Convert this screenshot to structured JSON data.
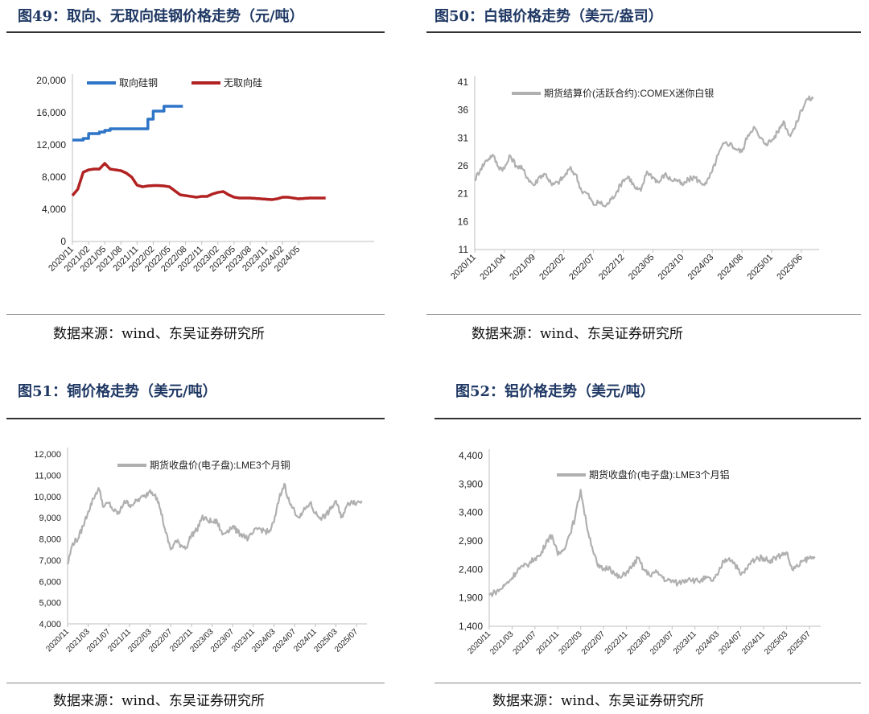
{
  "panels": [
    {
      "title": "图49：取向、无取向硅钢价格走势（元/吨）",
      "source": "数据来源：wind、东吴证券研究所"
    },
    {
      "title": "图50：白银价格走势（美元/盎司）",
      "source": "数据来源：wind、东吴证券研究所"
    },
    {
      "title": "图51：铜价格走势（美元/吨）",
      "source": "数据来源：wind、东吴证券研究所"
    },
    {
      "title": "图52：铝价格走势（美元/吨）",
      "source": "数据来源：wind、东吴证券研究所"
    }
  ],
  "chart_data": [
    {
      "type": "line",
      "title": "",
      "xlabel": "",
      "ylabel": "",
      "ylim": [
        0,
        20000
      ],
      "yticks": [
        "0",
        "4,000",
        "8,000",
        "12,000",
        "16,000",
        "20,000"
      ],
      "xrange": [
        "2020-11",
        "2025-07"
      ],
      "xticks": [
        "2020/11",
        "2021/02",
        "2021/05",
        "2021/08",
        "2021/11",
        "2022/02",
        "2022/05",
        "2022/08",
        "2022/11",
        "2023/02",
        "2023/05",
        "2023/08",
        "2023/11",
        "2024/02",
        "2024/05"
      ],
      "legend_position": "top",
      "grid": false,
      "series": [
        {
          "name": "取向硅钢",
          "color": "#2e75c8",
          "step": true,
          "x": [
            "2020-11",
            "2021-01",
            "2021-02",
            "2021-04",
            "2021-05",
            "2021-06",
            "2021-08",
            "2021-10",
            "2022-01",
            "2022-02",
            "2022-03",
            "2022-04",
            "2022-05",
            "2022-06",
            "2022-07"
          ],
          "values": [
            12600,
            12800,
            13400,
            13600,
            13800,
            14000,
            14000,
            14000,
            15200,
            16200,
            16200,
            16800,
            16800,
            16800,
            16800
          ]
        },
        {
          "name": "无取向硅",
          "color": "#b22222",
          "x": [
            "2020-11",
            "2020-12",
            "2021-01",
            "2021-02",
            "2021-03",
            "2021-04",
            "2021-05",
            "2021-06",
            "2021-07",
            "2021-08",
            "2021-09",
            "2021-10",
            "2021-11",
            "2021-12",
            "2022-01",
            "2022-02",
            "2022-03",
            "2022-04",
            "2022-05",
            "2022-06",
            "2022-07",
            "2022-08",
            "2022-09",
            "2022-10",
            "2022-11",
            "2022-12",
            "2023-01",
            "2023-02",
            "2023-03",
            "2023-04",
            "2023-05",
            "2023-06",
            "2023-07",
            "2023-08",
            "2023-09",
            "2023-10",
            "2023-11",
            "2023-12",
            "2024-01",
            "2024-02",
            "2024-03",
            "2024-04",
            "2024-05",
            "2024-06",
            "2024-07",
            "2024-08",
            "2024-09",
            "2024-10"
          ],
          "values": [
            5700,
            6500,
            8600,
            8900,
            9000,
            9000,
            9700,
            9000,
            8900,
            8800,
            8500,
            8000,
            7000,
            6800,
            6900,
            6950,
            6950,
            6900,
            6800,
            6300,
            5800,
            5700,
            5600,
            5500,
            5600,
            5600,
            5900,
            6100,
            6200,
            5800,
            5500,
            5400,
            5400,
            5400,
            5350,
            5300,
            5250,
            5200,
            5300,
            5500,
            5500,
            5400,
            5300,
            5350,
            5400,
            5400,
            5400,
            5400
          ]
        }
      ]
    },
    {
      "type": "line",
      "title": "",
      "xlabel": "",
      "ylabel": "",
      "ylim": [
        11,
        41
      ],
      "yticks": [
        "11",
        "16",
        "21",
        "26",
        "31",
        "36",
        "41"
      ],
      "xrange": [
        "2020-11",
        "2025-09"
      ],
      "xticks": [
        "2020/11",
        "2021/04",
        "2021/09",
        "2022/02",
        "2022/07",
        "2022/12",
        "2023/05",
        "2023/10",
        "2024/03",
        "2024/08",
        "2025/01",
        "2025/06"
      ],
      "legend_position": "top-right",
      "grid": false,
      "series": [
        {
          "name": "期货结算价(活跃合约):COMEX迷你白银",
          "color": "#b0b0b0",
          "x": [
            "2020-11",
            "2020-12",
            "2021-01",
            "2021-02",
            "2021-03",
            "2021-04",
            "2021-05",
            "2021-06",
            "2021-07",
            "2021-08",
            "2021-09",
            "2021-10",
            "2021-11",
            "2021-12",
            "2022-01",
            "2022-02",
            "2022-03",
            "2022-04",
            "2022-05",
            "2022-06",
            "2022-07",
            "2022-08",
            "2022-09",
            "2022-10",
            "2022-11",
            "2022-12",
            "2023-01",
            "2023-02",
            "2023-03",
            "2023-04",
            "2023-05",
            "2023-06",
            "2023-07",
            "2023-08",
            "2023-09",
            "2023-10",
            "2023-11",
            "2023-12",
            "2024-01",
            "2024-02",
            "2024-03",
            "2024-04",
            "2024-05",
            "2024-06",
            "2024-07",
            "2024-08",
            "2024-09",
            "2024-10",
            "2024-11",
            "2024-12",
            "2025-01",
            "2025-02",
            "2025-03",
            "2025-04",
            "2025-05",
            "2025-06",
            "2025-07",
            "2025-08"
          ],
          "values": [
            23.5,
            25.5,
            27,
            28,
            25.8,
            25.5,
            27.8,
            26,
            25.5,
            23.7,
            22.5,
            24.2,
            24.5,
            22.5,
            23,
            24,
            25.5,
            24.5,
            21.5,
            21,
            19,
            19.5,
            18.7,
            20,
            21.5,
            23.5,
            24,
            22,
            21.5,
            25,
            24,
            23,
            24.5,
            23.5,
            23.5,
            22.5,
            23.5,
            24,
            23,
            22.8,
            25,
            28,
            30,
            30,
            29,
            28.5,
            31.5,
            33,
            31,
            30,
            30.5,
            32,
            34,
            31.5,
            33,
            36,
            38,
            38
          ]
        }
      ]
    },
    {
      "type": "line",
      "title": "",
      "xlabel": "",
      "ylabel": "",
      "ylim": [
        4000,
        12000
      ],
      "yticks": [
        "4,000",
        "5,000",
        "6,000",
        "7,000",
        "8,000",
        "9,000",
        "10,000",
        "11,000",
        "12,000"
      ],
      "xrange": [
        "2020-11",
        "2025-09"
      ],
      "xticks": [
        "2020/11",
        "2021/03",
        "2021/07",
        "2021/11",
        "2022/03",
        "2022/07",
        "2022/11",
        "2023/03",
        "2023/07",
        "2023/11",
        "2024/03",
        "2024/07",
        "2024/11",
        "2025/03",
        "2025/07"
      ],
      "legend_position": "top",
      "grid": false,
      "series": [
        {
          "name": "期货收盘价(电子盘):LME3个月铜",
          "color": "#b0b0b0",
          "x": [
            "2020-11",
            "2020-12",
            "2021-01",
            "2021-02",
            "2021-03",
            "2021-04",
            "2021-05",
            "2021-06",
            "2021-07",
            "2021-08",
            "2021-09",
            "2021-10",
            "2021-11",
            "2021-12",
            "2022-01",
            "2022-02",
            "2022-03",
            "2022-04",
            "2022-05",
            "2022-06",
            "2022-07",
            "2022-08",
            "2022-09",
            "2022-10",
            "2022-11",
            "2022-12",
            "2023-01",
            "2023-02",
            "2023-03",
            "2023-04",
            "2023-05",
            "2023-06",
            "2023-07",
            "2023-08",
            "2023-09",
            "2023-10",
            "2023-11",
            "2023-12",
            "2024-01",
            "2024-02",
            "2024-03",
            "2024-04",
            "2024-05",
            "2024-06",
            "2024-07",
            "2024-08",
            "2024-09",
            "2024-10",
            "2024-11",
            "2024-12",
            "2025-01",
            "2025-02",
            "2025-03",
            "2025-04",
            "2025-05",
            "2025-06",
            "2025-07",
            "2025-08"
          ],
          "values": [
            6800,
            7800,
            8000,
            8600,
            9300,
            9900,
            10400,
            9500,
            9700,
            9300,
            9200,
            9800,
            9600,
            9700,
            9900,
            10000,
            10300,
            10100,
            9400,
            8300,
            7500,
            7900,
            7700,
            7600,
            8200,
            8400,
            9000,
            8900,
            8800,
            8800,
            8200,
            8400,
            8600,
            8300,
            8200,
            8000,
            8300,
            8500,
            8400,
            8300,
            8800,
            9900,
            10600,
            9700,
            9300,
            9000,
            9400,
            9700,
            9200,
            9000,
            9100,
            9400,
            9800,
            9000,
            9500,
            9800,
            9700,
            9800
          ]
        }
      ]
    },
    {
      "type": "line",
      "title": "",
      "xlabel": "",
      "ylabel": "",
      "ylim": [
        1400,
        4400
      ],
      "yticks": [
        "1,400",
        "1,900",
        "2,400",
        "2,900",
        "3,400",
        "3,900",
        "4,400"
      ],
      "xrange": [
        "2020-11",
        "2025-09"
      ],
      "xticks": [
        "2020/11",
        "2021/03",
        "2021/07",
        "2021/11",
        "2022/03",
        "2022/07",
        "2022/11",
        "2023/03",
        "2023/07",
        "2023/11",
        "2024/03",
        "2024/07",
        "2024/11",
        "2025/03",
        "2025/07"
      ],
      "legend_position": "top",
      "grid": false,
      "series": [
        {
          "name": "期货收盘价(电子盘):LME3个月铝",
          "color": "#b0b0b0",
          "x": [
            "2020-11",
            "2020-12",
            "2021-01",
            "2021-02",
            "2021-03",
            "2021-04",
            "2021-05",
            "2021-06",
            "2021-07",
            "2021-08",
            "2021-09",
            "2021-10",
            "2021-11",
            "2021-12",
            "2022-01",
            "2022-02",
            "2022-03",
            "2022-04",
            "2022-05",
            "2022-06",
            "2022-07",
            "2022-08",
            "2022-09",
            "2022-10",
            "2022-11",
            "2022-12",
            "2023-01",
            "2023-02",
            "2023-03",
            "2023-04",
            "2023-05",
            "2023-06",
            "2023-07",
            "2023-08",
            "2023-09",
            "2023-10",
            "2023-11",
            "2023-12",
            "2024-01",
            "2024-02",
            "2024-03",
            "2024-04",
            "2024-05",
            "2024-06",
            "2024-07",
            "2024-08",
            "2024-09",
            "2024-10",
            "2024-11",
            "2024-12",
            "2025-01",
            "2025-02",
            "2025-03",
            "2025-04",
            "2025-05",
            "2025-06",
            "2025-07",
            "2025-08"
          ],
          "values": [
            1950,
            2000,
            2050,
            2150,
            2250,
            2400,
            2450,
            2500,
            2600,
            2650,
            2900,
            3000,
            2650,
            2750,
            3000,
            3300,
            3800,
            3200,
            2800,
            2450,
            2400,
            2450,
            2300,
            2250,
            2350,
            2450,
            2600,
            2400,
            2300,
            2350,
            2300,
            2200,
            2200,
            2150,
            2200,
            2250,
            2200,
            2200,
            2250,
            2200,
            2300,
            2550,
            2600,
            2500,
            2300,
            2400,
            2550,
            2600,
            2600,
            2550,
            2600,
            2650,
            2700,
            2400,
            2450,
            2550,
            2600,
            2600
          ]
        }
      ]
    }
  ]
}
